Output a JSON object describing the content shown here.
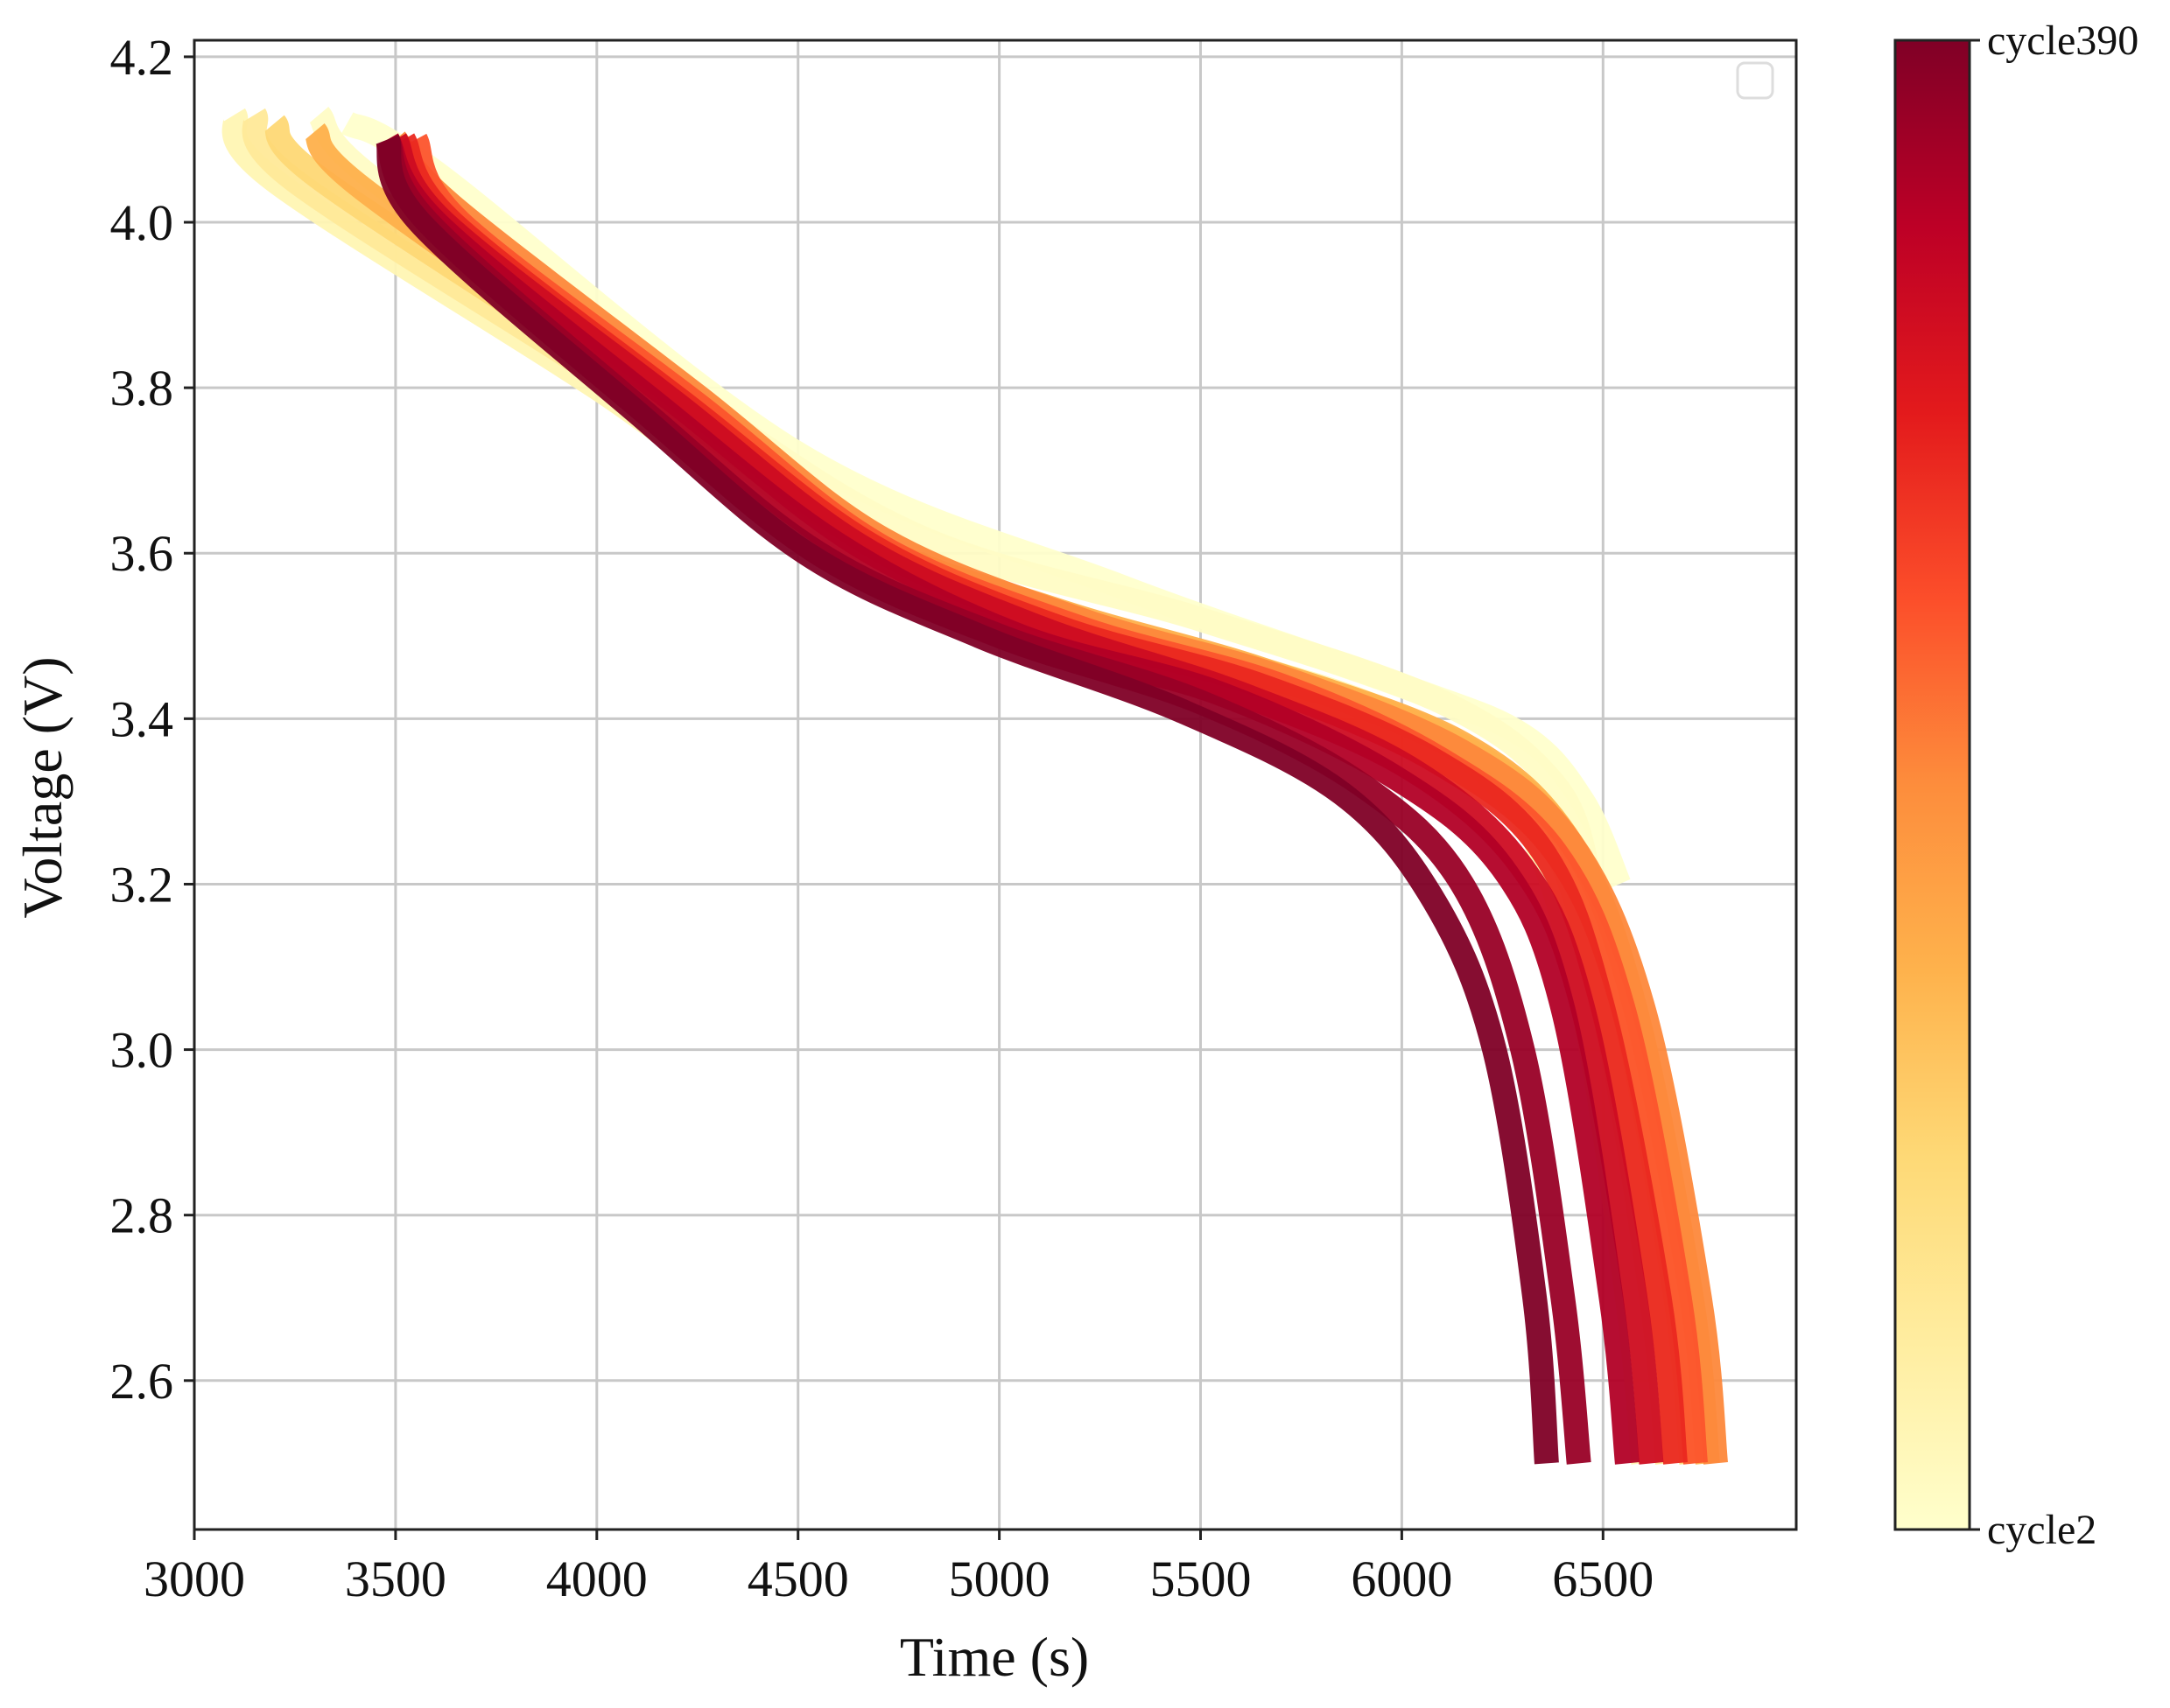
{
  "chart_data": {
    "type": "line",
    "title": "",
    "xlabel": "Time (s)",
    "ylabel": "Voltage (V)",
    "xlim": [
      3000,
      6980
    ],
    "ylim": [
      2.42,
      4.22
    ],
    "xticks": [
      "3000",
      "3500",
      "4000",
      "4500",
      "5000",
      "5500",
      "6000",
      "6500"
    ],
    "yticks": [
      "2.6",
      "2.8",
      "3.0",
      "3.2",
      "3.4",
      "3.6",
      "3.8",
      "4.0",
      "4.2"
    ],
    "grid": true,
    "legend": "top-right (empty)",
    "colorbar": {
      "colormap": "YlOrRd",
      "min_label": "cycle2",
      "max_label": "cycle390",
      "min_cycle": 2,
      "max_cycle": 390,
      "colors": [
        "#ffffcc",
        "#ffeda0",
        "#fed976",
        "#feb24c",
        "#fd8d3c",
        "#fc4e2a",
        "#e31a1c",
        "#bd0026",
        "#800026"
      ]
    },
    "series": [
      {
        "cycle": 2,
        "values": [
          [
            3380,
            4.12
          ],
          [
            3600,
            4.06
          ],
          [
            4500,
            3.72
          ],
          [
            5300,
            3.56
          ],
          [
            6000,
            3.44
          ],
          [
            6300,
            3.38
          ],
          [
            6450,
            3.3
          ],
          [
            6540,
            3.2
          ]
        ]
      },
      {
        "cycle": 10,
        "values": [
          [
            3310,
            4.13
          ],
          [
            3450,
            4.05
          ],
          [
            4200,
            3.8
          ],
          [
            4800,
            3.62
          ],
          [
            5500,
            3.52
          ],
          [
            6100,
            3.42
          ],
          [
            6380,
            3.32
          ],
          [
            6470,
            3.2
          ],
          [
            6520,
            3.05
          ]
        ]
      },
      {
        "cycle": 30,
        "values": [
          [
            3100,
            4.13
          ],
          [
            3200,
            4.05
          ],
          [
            4000,
            3.8
          ],
          [
            4500,
            3.63
          ],
          [
            5000,
            3.54
          ],
          [
            5500,
            3.48
          ],
          [
            6000,
            3.4
          ],
          [
            6300,
            3.28
          ],
          [
            6450,
            3.05
          ],
          [
            6560,
            2.7
          ],
          [
            6600,
            2.5
          ]
        ]
      },
      {
        "cycle": 60,
        "values": [
          [
            3150,
            4.13
          ],
          [
            3250,
            4.05
          ],
          [
            4050,
            3.8
          ],
          [
            4550,
            3.63
          ],
          [
            5050,
            3.54
          ],
          [
            5550,
            3.47
          ],
          [
            6050,
            3.39
          ],
          [
            6350,
            3.27
          ],
          [
            6500,
            3.05
          ],
          [
            6620,
            2.7
          ],
          [
            6660,
            2.5
          ]
        ]
      },
      {
        "cycle": 100,
        "values": [
          [
            3200,
            4.12
          ],
          [
            3320,
            4.05
          ],
          [
            4100,
            3.8
          ],
          [
            4600,
            3.63
          ],
          [
            5100,
            3.53
          ],
          [
            5600,
            3.46
          ],
          [
            6100,
            3.38
          ],
          [
            6400,
            3.26
          ],
          [
            6550,
            3.05
          ],
          [
            6680,
            2.7
          ],
          [
            6720,
            2.5
          ]
        ]
      },
      {
        "cycle": 150,
        "values": [
          [
            3300,
            4.11
          ],
          [
            3420,
            4.04
          ],
          [
            4150,
            3.79
          ],
          [
            4650,
            3.62
          ],
          [
            5150,
            3.53
          ],
          [
            5650,
            3.46
          ],
          [
            6150,
            3.37
          ],
          [
            6420,
            3.25
          ],
          [
            6580,
            3.05
          ],
          [
            6720,
            2.7
          ],
          [
            6760,
            2.5
          ]
        ]
      },
      {
        "cycle": 200,
        "values": [
          [
            3500,
            4.1
          ],
          [
            3640,
            4.02
          ],
          [
            4250,
            3.79
          ],
          [
            4700,
            3.62
          ],
          [
            5200,
            3.52
          ],
          [
            5700,
            3.45
          ],
          [
            6150,
            3.36
          ],
          [
            6420,
            3.25
          ],
          [
            6600,
            3.05
          ],
          [
            6740,
            2.7
          ],
          [
            6780,
            2.5
          ]
        ]
      },
      {
        "cycle": 240,
        "values": [
          [
            3550,
            4.1
          ],
          [
            3660,
            4.0
          ],
          [
            4250,
            3.78
          ],
          [
            4700,
            3.61
          ],
          [
            5200,
            3.51
          ],
          [
            5700,
            3.44
          ],
          [
            6100,
            3.35
          ],
          [
            6380,
            3.24
          ],
          [
            6550,
            3.05
          ],
          [
            6690,
            2.7
          ],
          [
            6730,
            2.5
          ]
        ]
      },
      {
        "cycle": 280,
        "values": [
          [
            3520,
            4.1
          ],
          [
            3640,
            4.0
          ],
          [
            4220,
            3.78
          ],
          [
            4680,
            3.61
          ],
          [
            5150,
            3.51
          ],
          [
            5650,
            3.44
          ],
          [
            6080,
            3.35
          ],
          [
            6350,
            3.24
          ],
          [
            6500,
            3.05
          ],
          [
            6640,
            2.7
          ],
          [
            6680,
            2.5
          ]
        ]
      },
      {
        "cycle": 320,
        "values": [
          [
            3500,
            4.1
          ],
          [
            3620,
            4.0
          ],
          [
            4200,
            3.78
          ],
          [
            4650,
            3.61
          ],
          [
            5100,
            3.51
          ],
          [
            5600,
            3.43
          ],
          [
            6020,
            3.34
          ],
          [
            6300,
            3.22
          ],
          [
            6450,
            3.05
          ],
          [
            6580,
            2.7
          ],
          [
            6620,
            2.5
          ]
        ]
      },
      {
        "cycle": 350,
        "values": [
          [
            3480,
            4.1
          ],
          [
            3600,
            4.0
          ],
          [
            4150,
            3.78
          ],
          [
            4600,
            3.61
          ],
          [
            5050,
            3.5
          ],
          [
            5550,
            3.43
          ],
          [
            5980,
            3.33
          ],
          [
            6250,
            3.22
          ],
          [
            6400,
            3.05
          ],
          [
            6520,
            2.7
          ],
          [
            6560,
            2.5
          ]
        ]
      },
      {
        "cycle": 370,
        "values": [
          [
            3480,
            4.1
          ],
          [
            3580,
            4.0
          ],
          [
            4120,
            3.77
          ],
          [
            4550,
            3.6
          ],
          [
            5000,
            3.5
          ],
          [
            5500,
            3.42
          ],
          [
            5900,
            3.32
          ],
          [
            6150,
            3.2
          ],
          [
            6300,
            3.0
          ],
          [
            6400,
            2.7
          ],
          [
            6440,
            2.5
          ]
        ]
      },
      {
        "cycle": 390,
        "values": [
          [
            3480,
            4.1
          ],
          [
            3560,
            4.0
          ],
          [
            4100,
            3.77
          ],
          [
            4520,
            3.6
          ],
          [
            4950,
            3.5
          ],
          [
            5450,
            3.41
          ],
          [
            5850,
            3.31
          ],
          [
            6080,
            3.18
          ],
          [
            6230,
            3.0
          ],
          [
            6330,
            2.7
          ],
          [
            6360,
            2.5
          ]
        ]
      }
    ]
  }
}
